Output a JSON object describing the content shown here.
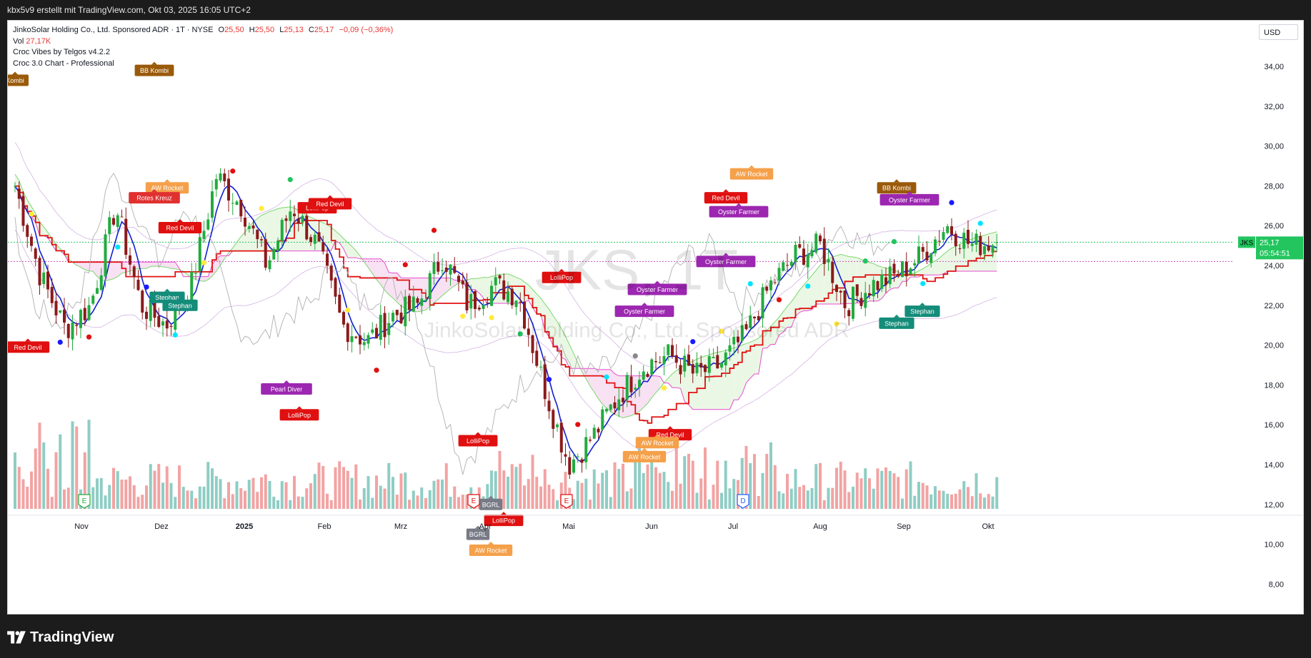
{
  "header": {
    "caption": "kbx5v9 erstellt mit TradingView.com, Okt 03, 2025 16:05 UTC+2"
  },
  "legend": {
    "symbol_line": "JinkoSolar Holding Co., Ltd. Sponsored ADR · 1T · NYSE",
    "open_label": "O",
    "open": "25,50",
    "high_label": "H",
    "high": "25,50",
    "low_label": "L",
    "low": "25,13",
    "close_label": "C",
    "close": "25,17",
    "change": "−0,09 (−0,36%)",
    "vol_label": "Vol",
    "vol": "27,17K",
    "indicator1": "Croc Vibes by Telgos v4.2.2",
    "indicator2": "Croc 3.0 Chart - Professional"
  },
  "currency_button": "USD",
  "watermark": {
    "big": "JKS, 1T",
    "small": "JinkoSolar Holding Co., Ltd. Sponsored ADR"
  },
  "price_tag": {
    "symbol": "JKS",
    "price": "25,17",
    "countdown": "05:54:51",
    "color": "#22c55e"
  },
  "footer": {
    "brand": "TradingView"
  },
  "colors": {
    "up": "#22ab3f",
    "down": "#8b1a1a",
    "vol_up": "#8fcdc4",
    "vol_down": "#f2a3a3",
    "baseline_red": "#e01010",
    "conv_blue": "#1020d0",
    "cloud_pink": "#f7dcf0",
    "cloud_green": "#e8f6e0"
  },
  "chart_data": {
    "type": "candlestick",
    "symbol": "JKS",
    "interval": "1T",
    "y_axis": {
      "ticks": [
        "34,00",
        "32,00",
        "30,00",
        "28,00",
        "26,00",
        "24,00",
        "22,00",
        "20,00",
        "18,00",
        "16,00",
        "14,00",
        "12,00",
        "10,00",
        "8,00"
      ],
      "ylim": [
        7.5,
        35
      ]
    },
    "x_axis": {
      "ticks": [
        "Nov",
        "Dez",
        "2025",
        "Feb",
        "Mrz",
        "Apr",
        "Mai",
        "Jun",
        "Jul",
        "Aug",
        "Sep",
        "Okt"
      ]
    },
    "price_path": [
      {
        "d": "Okt 2024",
        "p": 28.0
      },
      {
        "d": "Okt 2024",
        "p": 23.5
      },
      {
        "d": "Okt 2024",
        "p": 20.8
      },
      {
        "d": "Nov",
        "p": 22.0
      },
      {
        "d": "Nov",
        "p": 27.0
      },
      {
        "d": "Nov",
        "p": 22.0
      },
      {
        "d": "Nov",
        "p": 21.0
      },
      {
        "d": "Dez",
        "p": 23.0
      },
      {
        "d": "Dez",
        "p": 28.5
      },
      {
        "d": "Dez",
        "p": 27.0
      },
      {
        "d": "Dez",
        "p": 24.0
      },
      {
        "d": "2025",
        "p": 27.0
      },
      {
        "d": "2025",
        "p": 25.0
      },
      {
        "d": "Jan",
        "p": 21.0
      },
      {
        "d": "Jan",
        "p": 20.2
      },
      {
        "d": "Feb",
        "p": 21.5
      },
      {
        "d": "Feb",
        "p": 22.0
      },
      {
        "d": "Mrz",
        "p": 24.5
      },
      {
        "d": "Mrz",
        "p": 22.0
      },
      {
        "d": "Mrz",
        "p": 23.0
      },
      {
        "d": "Mrz",
        "p": 22.5
      },
      {
        "d": "Apr",
        "p": 18.0
      },
      {
        "d": "Apr",
        "p": 14.0
      },
      {
        "d": "Apr",
        "p": 15.5
      },
      {
        "d": "Mai",
        "p": 17.5
      },
      {
        "d": "Mai",
        "p": 19.0
      },
      {
        "d": "Mai",
        "p": 19.5
      },
      {
        "d": "Jun",
        "p": 18.5
      },
      {
        "d": "Jun",
        "p": 19.0
      },
      {
        "d": "Jun",
        "p": 20.5
      },
      {
        "d": "Jul",
        "p": 23.0
      },
      {
        "d": "Jul",
        "p": 24.5
      },
      {
        "d": "Jul",
        "p": 25.0
      },
      {
        "d": "Aug",
        "p": 22.0
      },
      {
        "d": "Aug",
        "p": 23.0
      },
      {
        "d": "Aug",
        "p": 23.5
      },
      {
        "d": "Sep",
        "p": 24.5
      },
      {
        "d": "Sep",
        "p": 26.0
      },
      {
        "d": "Sep",
        "p": 25.0
      },
      {
        "d": "Okt",
        "p": 25.2
      }
    ],
    "last_close": 25.17,
    "labels": [
      {
        "text": "Kombi",
        "color": "#9a5a0a",
        "x": "Okt 2024",
        "y": 33.3
      },
      {
        "text": "BB Kombi",
        "color": "#9a5a0a",
        "x": "Dez",
        "y": 33.8
      },
      {
        "text": "AW Rocket",
        "color": "#f5a04a",
        "x": "Dez",
        "y": 27.9
      },
      {
        "text": "Red Devil",
        "color": "#e01010",
        "x": "Dez",
        "y": 25.9
      },
      {
        "text": "Rotes Kreuz",
        "color": "#e03030",
        "x": "Dez",
        "y": 27.4
      },
      {
        "text": "Red Devil",
        "color": "#e01010",
        "x": "Okt 2024",
        "y": 19.9
      },
      {
        "text": "Stephan",
        "color": "#148c7a",
        "x": "Dez",
        "y": 22.4
      },
      {
        "text": "Stephan",
        "color": "#148c7a",
        "x": "Dez",
        "y": 22.0
      },
      {
        "text": "LolliPop",
        "color": "#e01010",
        "x": "Feb",
        "y": 26.9
      },
      {
        "text": "Red Devil",
        "color": "#e01010",
        "x": "Feb",
        "y": 27.1
      },
      {
        "text": "Pearl Diver",
        "color": "#9c27b0",
        "x": "Jan",
        "y": 17.8
      },
      {
        "text": "LolliPop",
        "color": "#e01010",
        "x": "Jan",
        "y": 16.5
      },
      {
        "text": "LolliPop",
        "color": "#e01010",
        "x": "Apr",
        "y": 15.2
      },
      {
        "text": "BGRL",
        "color": "#787b86",
        "x": "Apr",
        "y": 12.0
      },
      {
        "text": "LolliPop",
        "color": "#e01010",
        "x": "Apr",
        "y": 11.2
      },
      {
        "text": "BGRL",
        "color": "#787b86",
        "x": "Apr",
        "y": 10.5
      },
      {
        "text": "AW Rocket",
        "color": "#f5a04a",
        "x": "Apr",
        "y": 9.7
      },
      {
        "text": "LolliPop",
        "color": "#e01010",
        "x": "Mai",
        "y": 23.4
      },
      {
        "text": "Oyster Farmer",
        "color": "#9c27b0",
        "x": "Jun",
        "y": 21.7
      },
      {
        "text": "Oyster Farmer",
        "color": "#9c27b0",
        "x": "Jun",
        "y": 22.8
      },
      {
        "text": "Oyster Farmer",
        "color": "#9c27b0",
        "x": "Jul",
        "y": 24.2
      },
      {
        "text": "Oyster Farmer",
        "color": "#9c27b0",
        "x": "Jul",
        "y": 26.7
      },
      {
        "text": "AW Rocket",
        "color": "#f5a04a",
        "x": "Jul",
        "y": 28.6
      },
      {
        "text": "Red Devil",
        "color": "#e01010",
        "x": "Jul",
        "y": 27.4
      },
      {
        "text": "Red Devil",
        "color": "#e01010",
        "x": "Jun",
        "y": 15.5
      },
      {
        "text": "AW Rocket",
        "color": "#f5a04a",
        "x": "Jun",
        "y": 14.4
      },
      {
        "text": "AW Rocket",
        "color": "#f5a04a",
        "x": "Jun",
        "y": 15.1
      },
      {
        "text": "BB Kombi",
        "color": "#9a5a0a",
        "x": "Sep",
        "y": 27.9
      },
      {
        "text": "Oyster Farmer",
        "color": "#9c27b0",
        "x": "Sep",
        "y": 27.3
      },
      {
        "text": "Stephan",
        "color": "#148c7a",
        "x": "Sep",
        "y": 21.7
      },
      {
        "text": "Stephan",
        "color": "#148c7a",
        "x": "Sep",
        "y": 21.1
      }
    ],
    "event_markers": [
      "E",
      "E",
      "E",
      "D"
    ],
    "reference_lines": [
      {
        "value": 25.17,
        "color": "#22c55e",
        "style": "dotted"
      },
      {
        "value": 24.2,
        "color": "#d04fc0",
        "style": "dotted"
      }
    ]
  }
}
